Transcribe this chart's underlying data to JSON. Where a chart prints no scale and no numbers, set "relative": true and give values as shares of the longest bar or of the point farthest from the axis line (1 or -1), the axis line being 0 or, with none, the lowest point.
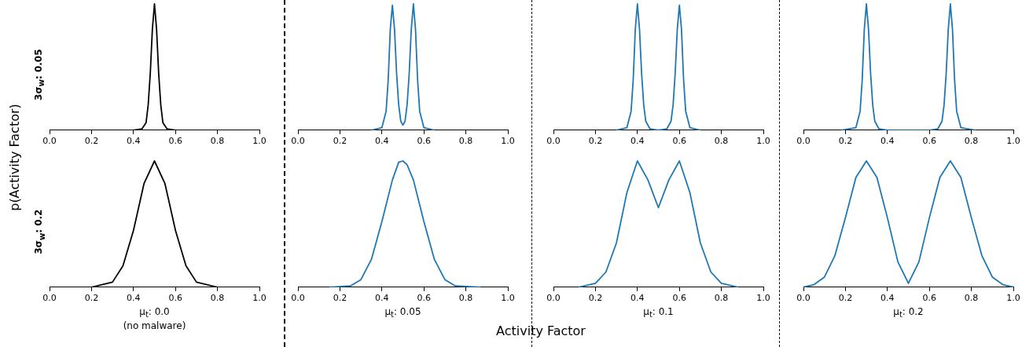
{
  "chart_data": [
    {
      "type": "line",
      "relative": true,
      "ylabel": "3σ$_{w}$: 0.05",
      "annotations": [
        "p(Activity Factor)"
      ],
      "xlim": [
        0,
        1
      ],
      "xticks": [
        {
          "value": 0,
          "label": "0.0"
        },
        {
          "value": 0.2,
          "label": "0.2"
        },
        {
          "value": 0.4,
          "label": "0.4"
        },
        {
          "value": 0.6,
          "label": "0.6"
        },
        {
          "value": 0.8,
          "label": "0.8"
        },
        {
          "value": 1,
          "label": "1.0"
        }
      ],
      "tick_labels": "x",
      "grid": false,
      "legend": false,
      "series": [
        {
          "color": "#000000",
          "x": [
            0.4,
            0.44,
            0.46,
            0.47,
            0.48,
            0.49,
            0.5,
            0.51,
            0.52,
            0.53,
            0.54,
            0.56,
            0.6
          ],
          "values": [
            0,
            0.01,
            0.06,
            0.2,
            0.45,
            0.8,
            1,
            0.8,
            0.45,
            0.2,
            0.06,
            0.01,
            0
          ]
        }
      ]
    },
    {
      "type": "line",
      "relative": true,
      "xlim": [
        0,
        1
      ],
      "xticks": [
        {
          "value": 0,
          "label": "0.0"
        },
        {
          "value": 0.2,
          "label": "0.2"
        },
        {
          "value": 0.4,
          "label": "0.4"
        },
        {
          "value": 0.6,
          "label": "0.6"
        },
        {
          "value": 0.8,
          "label": "0.8"
        },
        {
          "value": 1,
          "label": "1.0"
        }
      ],
      "tick_labels": "x",
      "grid": false,
      "legend": false,
      "series": [
        {
          "color": "#1f77b4",
          "x": [
            0.35,
            0.4,
            0.42,
            0.43,
            0.44,
            0.45,
            0.46,
            0.47,
            0.48,
            0.49,
            0.5,
            0.51,
            0.52,
            0.53,
            0.54,
            0.55,
            0.56,
            0.57,
            0.58,
            0.6,
            0.65
          ],
          "values": [
            0,
            0.02,
            0.15,
            0.4,
            0.8,
            0.99,
            0.8,
            0.45,
            0.2,
            0.07,
            0.04,
            0.07,
            0.2,
            0.45,
            0.8,
            1,
            0.8,
            0.4,
            0.15,
            0.02,
            0
          ]
        }
      ]
    },
    {
      "type": "line",
      "relative": true,
      "xlim": [
        0,
        1
      ],
      "xticks": [
        {
          "value": 0,
          "label": "0.0"
        },
        {
          "value": 0.2,
          "label": "0.2"
        },
        {
          "value": 0.4,
          "label": "0.4"
        },
        {
          "value": 0.6,
          "label": "0.6"
        },
        {
          "value": 0.8,
          "label": "0.8"
        },
        {
          "value": 1,
          "label": "1.0"
        }
      ],
      "tick_labels": "x",
      "grid": false,
      "legend": false,
      "series": [
        {
          "color": "#1f77b4",
          "x": [
            0.3,
            0.35,
            0.37,
            0.38,
            0.39,
            0.4,
            0.41,
            0.42,
            0.43,
            0.44,
            0.46,
            0.5,
            0.54,
            0.56,
            0.57,
            0.58,
            0.59,
            0.6,
            0.61,
            0.62,
            0.63,
            0.65,
            0.7
          ],
          "values": [
            0,
            0.02,
            0.15,
            0.4,
            0.8,
            1,
            0.8,
            0.45,
            0.2,
            0.07,
            0.01,
            0,
            0.01,
            0.07,
            0.2,
            0.45,
            0.8,
            0.99,
            0.8,
            0.4,
            0.15,
            0.02,
            0
          ]
        }
      ]
    },
    {
      "type": "line",
      "relative": true,
      "xlim": [
        0,
        1
      ],
      "xticks": [
        {
          "value": 0,
          "label": "0.0"
        },
        {
          "value": 0.2,
          "label": "0.2"
        },
        {
          "value": 0.4,
          "label": "0.4"
        },
        {
          "value": 0.6,
          "label": "0.6"
        },
        {
          "value": 0.8,
          "label": "0.8"
        },
        {
          "value": 1,
          "label": "1.0"
        }
      ],
      "tick_labels": "x",
      "grid": false,
      "legend": false,
      "series": [
        {
          "color": "#1f77b4",
          "x": [
            0.18,
            0.25,
            0.27,
            0.28,
            0.29,
            0.3,
            0.31,
            0.32,
            0.33,
            0.34,
            0.36,
            0.4,
            0.6,
            0.64,
            0.66,
            0.67,
            0.68,
            0.69,
            0.7,
            0.71,
            0.72,
            0.73,
            0.75,
            0.82
          ],
          "values": [
            0,
            0.02,
            0.15,
            0.4,
            0.8,
            1,
            0.8,
            0.45,
            0.2,
            0.07,
            0.01,
            0,
            0,
            0.01,
            0.07,
            0.2,
            0.45,
            0.8,
            1,
            0.8,
            0.4,
            0.15,
            0.02,
            0
          ]
        }
      ]
    },
    {
      "type": "line",
      "relative": true,
      "ylabel": "3σ$_{w}$: 0.2",
      "xlabel": "μ$_{t}$: 0.0\n(no malware)",
      "xlim": [
        0,
        1
      ],
      "xticks": [
        {
          "value": 0,
          "label": "0.0"
        },
        {
          "value": 0.2,
          "label": "0.2"
        },
        {
          "value": 0.4,
          "label": "0.4"
        },
        {
          "value": 0.6,
          "label": "0.6"
        },
        {
          "value": 0.8,
          "label": "0.8"
        },
        {
          "value": 1,
          "label": "1.0"
        }
      ],
      "tick_labels": "x",
      "grid": false,
      "legend": false,
      "series": [
        {
          "color": "#000000",
          "x": [
            0.2,
            0.3,
            0.35,
            0.4,
            0.45,
            0.5,
            0.55,
            0.6,
            0.65,
            0.7,
            0.8
          ],
          "values": [
            0,
            0.04,
            0.17,
            0.45,
            0.82,
            1,
            0.82,
            0.45,
            0.17,
            0.04,
            0
          ]
        }
      ]
    },
    {
      "type": "line",
      "relative": true,
      "xlabel": "μ$_{t}$: 0.05",
      "annotations": [
        "Activity Factor"
      ],
      "xlim": [
        0,
        1
      ],
      "xticks": [
        {
          "value": 0,
          "label": "0.0"
        },
        {
          "value": 0.2,
          "label": "0.2"
        },
        {
          "value": 0.4,
          "label": "0.4"
        },
        {
          "value": 0.6,
          "label": "0.6"
        },
        {
          "value": 0.8,
          "label": "0.8"
        },
        {
          "value": 1,
          "label": "1.0"
        }
      ],
      "tick_labels": "x",
      "grid": false,
      "legend": false,
      "series": [
        {
          "color": "#1f77b4",
          "x": [
            0.15,
            0.25,
            0.3,
            0.35,
            0.4,
            0.45,
            0.48,
            0.5,
            0.52,
            0.55,
            0.6,
            0.65,
            0.7,
            0.75,
            0.87
          ],
          "values": [
            0,
            0.01,
            0.06,
            0.22,
            0.52,
            0.85,
            0.99,
            1,
            0.97,
            0.85,
            0.52,
            0.22,
            0.06,
            0.01,
            0
          ]
        }
      ]
    },
    {
      "type": "line",
      "relative": true,
      "xlabel": "μ$_{t}$: 0.1",
      "xlim": [
        0,
        1
      ],
      "xticks": [
        {
          "value": 0,
          "label": "0.0"
        },
        {
          "value": 0.2,
          "label": "0.2"
        },
        {
          "value": 0.4,
          "label": "0.4"
        },
        {
          "value": 0.6,
          "label": "0.6"
        },
        {
          "value": 0.8,
          "label": "0.8"
        },
        {
          "value": 1,
          "label": "1.0"
        }
      ],
      "tick_labels": "x",
      "grid": false,
      "legend": false,
      "series": [
        {
          "color": "#1f77b4",
          "x": [
            0.12,
            0.2,
            0.25,
            0.3,
            0.35,
            0.4,
            0.45,
            0.5,
            0.55,
            0.6,
            0.65,
            0.7,
            0.75,
            0.8,
            0.88
          ],
          "values": [
            0,
            0.03,
            0.12,
            0.35,
            0.75,
            1,
            0.85,
            0.63,
            0.85,
            1,
            0.75,
            0.35,
            0.12,
            0.03,
            0
          ]
        }
      ]
    },
    {
      "type": "line",
      "relative": true,
      "xlabel": "μ$_{t}$: 0.2",
      "xlim": [
        0,
        1
      ],
      "xticks": [
        {
          "value": 0,
          "label": "0.0"
        },
        {
          "value": 0.2,
          "label": "0.2"
        },
        {
          "value": 0.4,
          "label": "0.4"
        },
        {
          "value": 0.6,
          "label": "0.6"
        },
        {
          "value": 0.8,
          "label": "0.8"
        },
        {
          "value": 1,
          "label": "1.0"
        }
      ],
      "tick_labels": "x",
      "grid": false,
      "legend": false,
      "series": [
        {
          "color": "#1f77b4",
          "x": [
            0,
            0.05,
            0.1,
            0.15,
            0.2,
            0.25,
            0.3,
            0.35,
            0.4,
            0.45,
            0.5,
            0.55,
            0.6,
            0.65,
            0.7,
            0.75,
            0.8,
            0.85,
            0.9,
            0.95,
            1
          ],
          "values": [
            0,
            0.02,
            0.08,
            0.25,
            0.55,
            0.87,
            1,
            0.87,
            0.55,
            0.2,
            0.03,
            0.2,
            0.55,
            0.87,
            1,
            0.87,
            0.55,
            0.25,
            0.08,
            0.02,
            0
          ]
        }
      ]
    }
  ]
}
